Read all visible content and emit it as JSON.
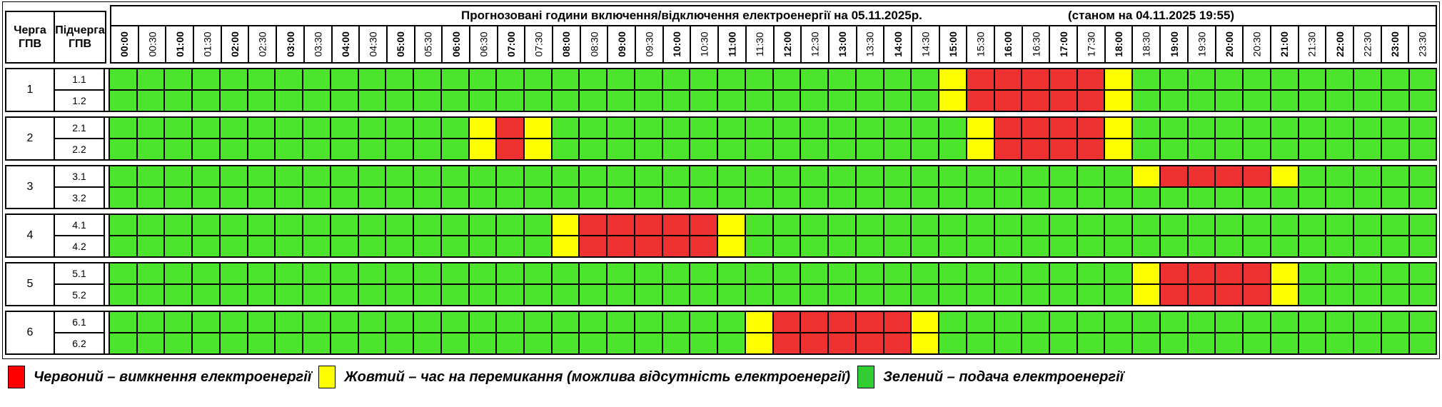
{
  "title": {
    "main": "Прогнозовані години включення/відключення електроенергії на 05.11.2025р.",
    "note": "(станом на 04.11.2025 19:55)"
  },
  "header": {
    "queue_col": "Черга ГПВ",
    "subqueue_col": "Підчерга ГПВ"
  },
  "chart_data": {
    "type": "heatmap",
    "x": [
      "00:00",
      "00:30",
      "01:00",
      "01:30",
      "02:00",
      "02:30",
      "03:00",
      "03:30",
      "04:00",
      "04:30",
      "05:00",
      "05:30",
      "06:00",
      "06:30",
      "07:00",
      "07:30",
      "08:00",
      "08:30",
      "09:00",
      "09:30",
      "10:00",
      "10:30",
      "11:00",
      "11:30",
      "12:00",
      "12:30",
      "13:00",
      "13:30",
      "14:00",
      "14:30",
      "15:00",
      "15:30",
      "16:00",
      "16:30",
      "17:00",
      "17:30",
      "18:00",
      "18:30",
      "19:00",
      "19:30",
      "20:00",
      "20:30",
      "21:00",
      "21:30",
      "22:00",
      "22:30",
      "23:00",
      "23:30"
    ],
    "state_colors": {
      "G": "#4CE42D",
      "Y": "#FFFF00",
      "R": "#ED3131"
    },
    "state_meaning": {
      "G": "подача електроенергії",
      "Y": "час на перемикання (можлива відсутність електроенергії)",
      "R": "вимкнення електроенергії"
    },
    "queues": [
      {
        "number": "1",
        "subqueues": [
          {
            "label": "1.1",
            "slots": "GGGGGGGGGGGGGGGGGGGGGGGGGGGGGGYRRRRRYGGGGGGGGGGG"
          },
          {
            "label": "1.2",
            "slots": "GGGGGGGGGGGGGGGGGGGGGGGGGGGGGGYRRRRRYGGGGGGGGGGG"
          }
        ]
      },
      {
        "number": "2",
        "subqueues": [
          {
            "label": "2.1",
            "slots": "GGGGGGGGGGGGGYRYGGGGGGGGGGGGGGGYRRRRYGGGGGGGGGGG"
          },
          {
            "label": "2.2",
            "slots": "GGGGGGGGGGGGGYRYGGGGGGGGGGGGGGGYRRRRYGGGGGGGGGGG"
          }
        ]
      },
      {
        "number": "3",
        "subqueues": [
          {
            "label": "3.1",
            "slots": "GGGGGGGGGGGGGGGGGGGGGGGGGGGGGGGGGGGGGYRRRRYGGGGG"
          },
          {
            "label": "3.2",
            "slots": "GGGGGGGGGGGGGGGGGGGGGGGGGGGGGGGGGGGGGGGGGGGGGGGG"
          }
        ]
      },
      {
        "number": "4",
        "subqueues": [
          {
            "label": "4.1",
            "slots": "GGGGGGGGGGGGGGGGYRRRRRYGGGGGGGGGGGGGGGGGGGGGGGGG"
          },
          {
            "label": "4.2",
            "slots": "GGGGGGGGGGGGGGGGYRRRRRYGGGGGGGGGGGGGGGGGGGGGGGGG"
          }
        ]
      },
      {
        "number": "5",
        "subqueues": [
          {
            "label": "5.1",
            "slots": "GGGGGGGGGGGGGGGGGGGGGGGGGGGGGGGGGGGGGYRRRRYGGGGG"
          },
          {
            "label": "5.2",
            "slots": "GGGGGGGGGGGGGGGGGGGGGGGGGGGGGGGGGGGGGYRRRRYGGGGG"
          }
        ]
      },
      {
        "number": "6",
        "subqueues": [
          {
            "label": "6.1",
            "slots": "GGGGGGGGGGGGGGGGGGGGGGGYRRRRRYGGGGGGGGGGGGGGGGGG"
          },
          {
            "label": "6.2",
            "slots": "GGGGGGGGGGGGGGGGGGGGGGGYRRRRRYGGGGGGGGGGGGGGGGGG"
          }
        ]
      }
    ]
  },
  "legend": [
    {
      "color": "#FF0000",
      "label": "Червоний – вимкнення електроенергії"
    },
    {
      "color": "#FFFF00",
      "label": "Жовтий – час на перемикання (можлива відсутність електроенергії)"
    },
    {
      "color": "#33CC33",
      "label": "Зелений – подача електроенергії"
    }
  ]
}
